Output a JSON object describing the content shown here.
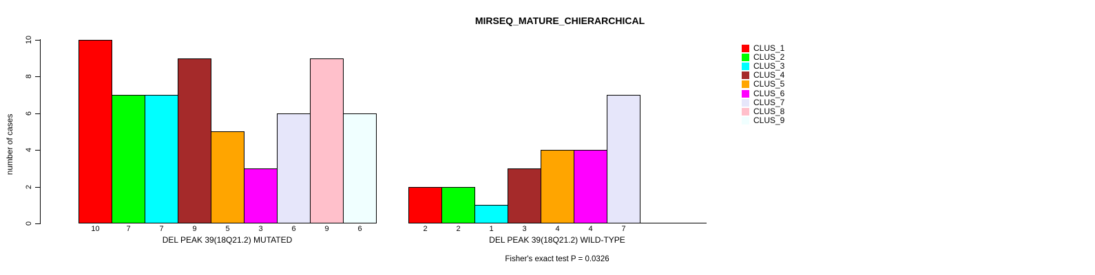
{
  "chart_data": {
    "type": "bar",
    "title": "MIRSEQ_MATURE_CHIERARCHICAL",
    "ylabel": "number of cases",
    "ylim": [
      0,
      10
    ],
    "yticks": [
      0,
      2,
      4,
      6,
      8,
      10
    ],
    "grid": false,
    "legend_position": "right",
    "series": [
      {
        "name": "CLUS_1",
        "color": "#FF0000"
      },
      {
        "name": "CLUS_2",
        "color": "#00FF00"
      },
      {
        "name": "CLUS_3",
        "color": "#00FFFF"
      },
      {
        "name": "CLUS_4",
        "color": "#A52A2A"
      },
      {
        "name": "CLUS_5",
        "color": "#FFA500"
      },
      {
        "name": "CLUS_6",
        "color": "#FF00FF"
      },
      {
        "name": "CLUS_7",
        "color": "#E6E6FA"
      },
      {
        "name": "CLUS_8",
        "color": "#FFC0CB"
      },
      {
        "name": "CLUS_9",
        "color": "#F0FFFF"
      }
    ],
    "groups": [
      {
        "id": "mutated",
        "label": "DEL PEAK 39(18Q21.2) MUTATED",
        "values": [
          10,
          7,
          7,
          9,
          5,
          3,
          6,
          9,
          6
        ]
      },
      {
        "id": "wild-type",
        "label": "DEL PEAK 39(18Q21.2) WILD-TYPE",
        "values": [
          2,
          2,
          1,
          3,
          4,
          4,
          7,
          0,
          0
        ]
      }
    ],
    "annotation": "Fisher's exact test P = 0.0326"
  }
}
